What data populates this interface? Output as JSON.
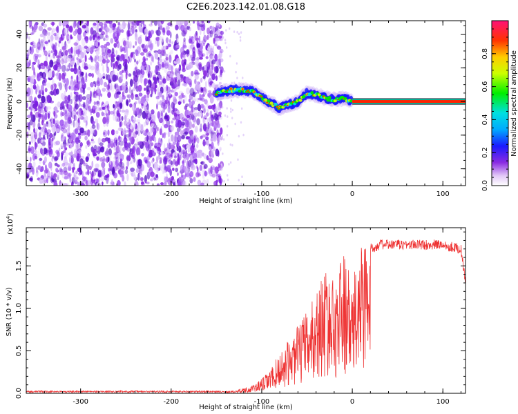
{
  "title": "C2E6.2023.142.01.08.G18",
  "chart_data": [
    {
      "type": "heatmap",
      "xlabel": "Height of straight line (km)",
      "ylabel": "Frequency (Hz)",
      "xlim": [
        -360,
        125
      ],
      "ylim": [
        -50,
        48
      ],
      "xticks": [
        -300,
        -200,
        -100,
        0,
        100
      ],
      "yticks": [
        -40,
        -20,
        0,
        20,
        40
      ],
      "noise_region_x": [
        -360,
        -150
      ],
      "signal_center_frequency": [
        {
          "x": -150,
          "y": 5
        },
        {
          "x": -130,
          "y": 7
        },
        {
          "x": -110,
          "y": 6
        },
        {
          "x": -100,
          "y": 2
        },
        {
          "x": -90,
          "y": -1
        },
        {
          "x": -80,
          "y": -4
        },
        {
          "x": -70,
          "y": -2
        },
        {
          "x": -60,
          "y": 0
        },
        {
          "x": -50,
          "y": 5
        },
        {
          "x": -40,
          "y": 4
        },
        {
          "x": -30,
          "y": 2
        },
        {
          "x": -20,
          "y": 1
        },
        {
          "x": -10,
          "y": 2
        },
        {
          "x": 0,
          "y": 0
        },
        {
          "x": 125,
          "y": 0
        }
      ],
      "colorbar": {
        "label": "Normalized spectral amplitude",
        "range": [
          0,
          1
        ],
        "ticks": [
          "0.0",
          "0.2",
          "0.4",
          "0.6",
          "0.8"
        ]
      },
      "grid": false
    },
    {
      "type": "line",
      "xlabel": "Height of straight line (km)",
      "ylabel": "SNR (10 * v/v)",
      "multiplier": "(x10",
      "multiplier_exp": "4",
      "multiplier_close": ")",
      "xlim": [
        -360,
        125
      ],
      "ylim": [
        0,
        1.95
      ],
      "xticks": [
        -300,
        -200,
        -100,
        0,
        100
      ],
      "yticks": [
        "0.0",
        "0.5",
        "1.0",
        "1.5"
      ],
      "color": "#ee3333",
      "series": [
        {
          "x": [
            -360,
            -300,
            -250,
            -200,
            -150,
            -130,
            -110,
            -100,
            -90,
            -80,
            -70,
            -60,
            -50,
            -40,
            -30,
            -20,
            -10,
            0,
            10,
            20,
            30,
            50,
            100,
            120,
            125
          ],
          "y": [
            0.0,
            0.0,
            0.01,
            0.0,
            0.01,
            0.03,
            0.08,
            0.15,
            0.25,
            0.42,
            0.55,
            0.7,
            0.85,
            1.05,
            1.3,
            1.15,
            1.5,
            1.1,
            1.65,
            1.7,
            1.75,
            1.75,
            1.75,
            1.7,
            1.3
          ]
        }
      ],
      "grid": false
    }
  ]
}
